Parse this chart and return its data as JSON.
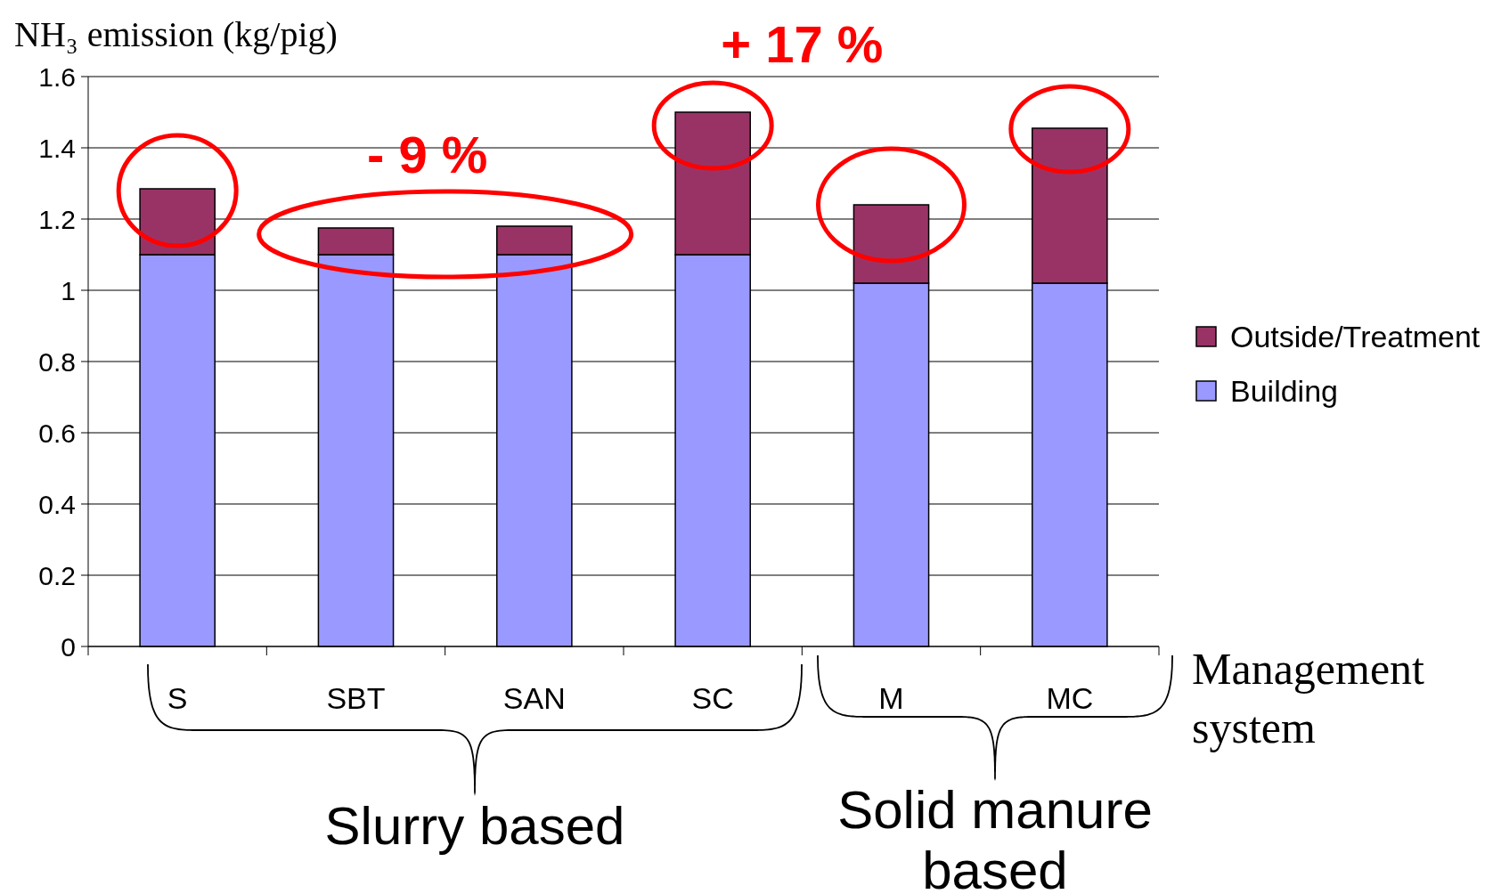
{
  "chart_data": {
    "type": "bar",
    "stacked": true,
    "ylabel": "NH₃ emission (kg/pig)",
    "xlabel": "Management system",
    "categories": [
      "S",
      "SBT",
      "SAN",
      "SC",
      "M",
      "MC"
    ],
    "series": [
      {
        "name": "Building",
        "color": "#9999ff",
        "values": [
          1.1,
          1.1,
          1.1,
          1.1,
          1.02,
          1.02
        ]
      },
      {
        "name": "Outside/Treatment",
        "color": "#993366",
        "values": [
          0.185,
          0.075,
          0.08,
          0.4,
          0.22,
          0.435
        ]
      }
    ],
    "ylim": [
      0,
      1.6
    ],
    "yticks": [
      0,
      {
        "value": 0.2,
        "label": "0.2"
      },
      {
        "value": 0.4,
        "label": "0.4"
      },
      {
        "value": 0.6,
        "label": "0.6"
      },
      {
        "value": 0.8,
        "label": "0.8"
      },
      1,
      {
        "value": 1.2,
        "label": "1.2"
      },
      {
        "value": 1.4,
        "label": "1.4"
      },
      {
        "value": 1.6,
        "label": "1.6"
      }
    ],
    "grid": "y",
    "legend": "right",
    "annotations": [
      "- 9 %",
      "+ 17 %",
      "Slurry based",
      "Solid manure based"
    ]
  }
}
